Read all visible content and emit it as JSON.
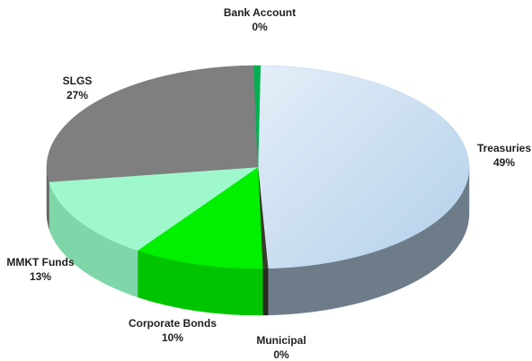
{
  "chart_data": {
    "type": "pie",
    "style": "3d",
    "slices": [
      {
        "label": "Treasuries",
        "value": 49,
        "display": "49%",
        "color": "#b9d4ec",
        "side_color": "#6e7c8a"
      },
      {
        "label": "Municipal",
        "value": 0.4,
        "display": "0%",
        "color": "#3a3a2c",
        "side_color": "#2a2a20"
      },
      {
        "label": "Corporate Bonds",
        "value": 10,
        "display": "10%",
        "color": "#00f000",
        "side_color": "#00c400"
      },
      {
        "label": "MMKT Funds",
        "value": 13,
        "display": "13%",
        "color": "#9ff7cc",
        "side_color": "#7fd6a9"
      },
      {
        "label": "SLGS",
        "value": 27,
        "display": "27%",
        "color": "#7f7f7f",
        "side_color": "#666666"
      },
      {
        "label": "Bank Account",
        "value": 0.5,
        "display": "0%",
        "color": "#00b050",
        "side_color": "#008a3e"
      }
    ]
  }
}
